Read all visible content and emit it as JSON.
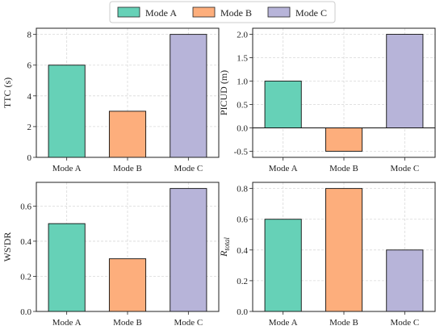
{
  "colors": {
    "Mode A": "#66d1b7",
    "Mode B": "#fdae7c",
    "Mode C": "#b7b4d9"
  },
  "legend": {
    "entries": [
      "Mode A",
      "Mode B",
      "Mode C"
    ],
    "placement": "top-center"
  },
  "chart_data": [
    {
      "type": "bar",
      "categories": [
        "Mode A",
        "Mode B",
        "Mode C"
      ],
      "values": [
        6,
        3,
        8
      ],
      "ylabel": "TTC (s)",
      "ylim": [
        0,
        8.4
      ],
      "yticks": [
        0,
        2,
        4,
        6,
        8
      ],
      "grid": true
    },
    {
      "type": "bar",
      "categories": [
        "Mode A",
        "Mode B",
        "Mode C"
      ],
      "values": [
        1.0,
        -0.5,
        2.0
      ],
      "ylabel": "PICUD (m)",
      "ylim": [
        -0.63,
        2.13
      ],
      "yticks": [
        -0.5,
        0.0,
        0.5,
        1.0,
        1.5,
        2.0
      ],
      "grid": true,
      "zero_line": true
    },
    {
      "type": "bar",
      "categories": [
        "Mode A",
        "Mode B",
        "Mode C"
      ],
      "values": [
        0.5,
        0.3,
        0.7
      ],
      "ylabel": "WS'DR",
      "ylim": [
        0,
        0.735
      ],
      "yticks": [
        0.0,
        0.2,
        0.4,
        0.6
      ],
      "grid": true
    },
    {
      "type": "bar",
      "categories": [
        "Mode A",
        "Mode B",
        "Mode C"
      ],
      "values": [
        0.6,
        0.8,
        0.4
      ],
      "ylabel": "R",
      "ylabel_sub": "total",
      "ylim": [
        0,
        0.84
      ],
      "yticks": [
        0.0,
        0.2,
        0.4,
        0.6,
        0.8
      ],
      "grid": true
    }
  ]
}
